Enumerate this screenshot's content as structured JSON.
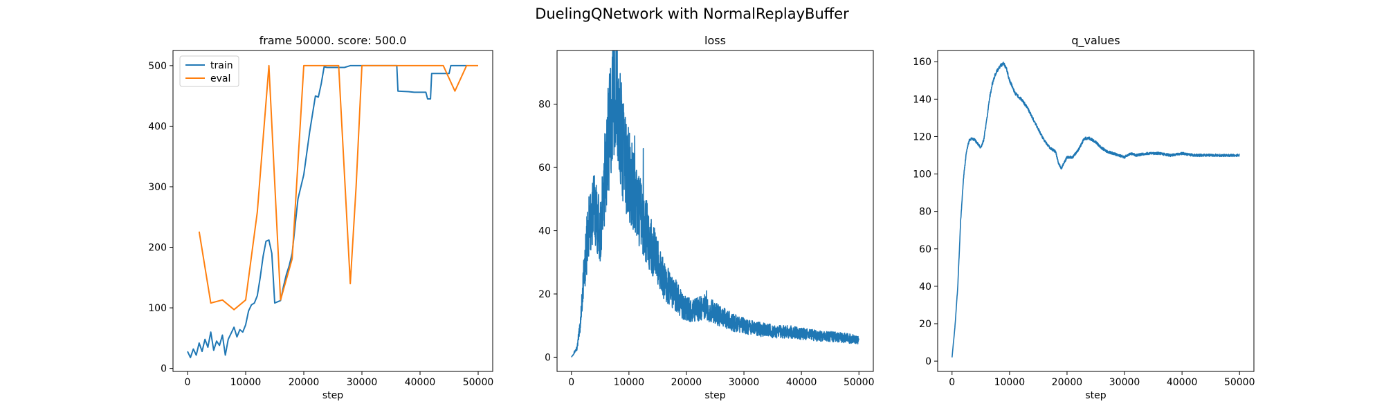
{
  "figure": {
    "title": "DuelingQNetwork with NormalReplayBuffer"
  },
  "colors": {
    "train": "#1f77b4",
    "eval": "#ff7f0e",
    "axis": "#000000"
  },
  "chart_data": [
    {
      "type": "line",
      "title": "frame 50000. score: 500.0",
      "xlabel": "step",
      "ylabel": "",
      "xlim": [
        -2500,
        52500
      ],
      "ylim": [
        -5,
        525
      ],
      "xticks": [
        0,
        10000,
        20000,
        30000,
        40000,
        50000
      ],
      "yticks": [
        0,
        100,
        200,
        300,
        400,
        500
      ],
      "legend": "top-left",
      "grid": false,
      "series": [
        {
          "name": "train",
          "color": "#1f77b4",
          "x": [
            0,
            500,
            1000,
            1500,
            2000,
            2500,
            3000,
            3500,
            4000,
            4500,
            5000,
            5500,
            6000,
            6500,
            7000,
            7500,
            8000,
            8500,
            9000,
            9500,
            10000,
            10500,
            11000,
            11500,
            12000,
            12500,
            13000,
            13500,
            14000,
            14500,
            15000,
            15500,
            16000,
            16500,
            17000,
            17500,
            18000,
            19000,
            20000,
            21000,
            22000,
            22500,
            23000,
            23500,
            24000,
            25000,
            26000,
            27000,
            28000,
            29000,
            30000,
            32000,
            34000,
            36000,
            36200,
            38000,
            39000,
            41000,
            41300,
            41800,
            42000,
            44000,
            45000,
            45300,
            46000,
            48000
          ],
          "y": [
            28,
            18,
            32,
            22,
            42,
            28,
            48,
            35,
            60,
            30,
            45,
            38,
            55,
            22,
            48,
            58,
            68,
            52,
            64,
            60,
            72,
            95,
            105,
            108,
            120,
            150,
            185,
            210,
            212,
            190,
            108,
            110,
            112,
            135,
            155,
            170,
            190,
            280,
            320,
            390,
            450,
            448,
            470,
            498,
            497,
            497,
            497,
            497,
            500,
            500,
            500,
            500,
            500,
            500,
            458,
            457,
            456,
            456,
            445,
            445,
            487,
            487,
            487,
            500,
            500,
            500
          ]
        },
        {
          "name": "eval",
          "color": "#ff7f0e",
          "x": [
            2000,
            4000,
            6000,
            8000,
            10000,
            12000,
            14000,
            16000,
            18000,
            20000,
            22000,
            24000,
            26000,
            28000,
            29000,
            30000,
            32000,
            34000,
            36000,
            38000,
            40000,
            42000,
            44000,
            46000,
            48000,
            50000
          ],
          "y": [
            226,
            108,
            113,
            97,
            113,
            258,
            500,
            113,
            181,
            500,
            500,
            500,
            500,
            140,
            300,
            500,
            500,
            500,
            500,
            500,
            500,
            500,
            500,
            458,
            500,
            500
          ]
        }
      ]
    },
    {
      "type": "line",
      "title": "loss",
      "xlabel": "step",
      "ylabel": "",
      "xlim": [
        -2500,
        52500
      ],
      "ylim": [
        -4.5,
        97
      ],
      "xticks": [
        0,
        10000,
        20000,
        30000,
        40000,
        50000
      ],
      "yticks": [
        0,
        20,
        40,
        60,
        80
      ],
      "grid": false,
      "series": [
        {
          "color": "#1f77b4",
          "x": [
            0,
            1000,
            1500,
            2000,
            2500,
            3000,
            3500,
            4000,
            4500,
            5000,
            5500,
            6000,
            6500,
            7000,
            7500,
            8000,
            8500,
            9000,
            9500,
            10000,
            11000,
            12000,
            13000,
            14000,
            15000,
            16000,
            17000,
            18000,
            19000,
            20000,
            22000,
            23000,
            24000,
            25000,
            26000,
            28000,
            30000,
            32000,
            34000,
            36000,
            38000,
            40000,
            42000,
            44000,
            46000,
            48000,
            50000
          ],
          "y": [
            0,
            3,
            10,
            22,
            33,
            40,
            45,
            48,
            44,
            40,
            48,
            62,
            70,
            80,
            85,
            78,
            72,
            65,
            60,
            58,
            52,
            45,
            40,
            35,
            30,
            25,
            22,
            20,
            17,
            15,
            15,
            16,
            15,
            14,
            13,
            11,
            10,
            9,
            8.5,
            8,
            8,
            7.5,
            7,
            6.5,
            6.5,
            6,
            5.5
          ],
          "noise": 0.16,
          "peaks": [
            [
              7500,
              94
            ],
            [
              8200,
              88
            ],
            [
              11000,
              70
            ],
            [
              12500,
              66
            ],
            [
              23500,
              21
            ]
          ]
        }
      ]
    },
    {
      "type": "line",
      "title": "q_values",
      "xlabel": "step",
      "ylabel": "",
      "xlim": [
        -2500,
        52500
      ],
      "ylim": [
        -5.5,
        166
      ],
      "xticks": [
        0,
        10000,
        20000,
        30000,
        40000,
        50000
      ],
      "yticks": [
        0,
        20,
        40,
        60,
        80,
        100,
        120,
        140,
        160
      ],
      "grid": false,
      "series": [
        {
          "color": "#1f77b4",
          "x": [
            0,
            500,
            1000,
            1500,
            2000,
            2500,
            3000,
            3500,
            4000,
            5000,
            5500,
            6000,
            6500,
            7000,
            7500,
            8000,
            8500,
            9000,
            9500,
            10000,
            11000,
            12000,
            13000,
            14000,
            15000,
            16000,
            17000,
            18000,
            18500,
            19000,
            19500,
            20000,
            21000,
            22000,
            23000,
            24000,
            25000,
            26000,
            27000,
            28000,
            29000,
            30000,
            31000,
            32000,
            34000,
            36000,
            38000,
            40000,
            42000,
            44000,
            46000,
            48000,
            50000
          ],
          "y": [
            2,
            18,
            40,
            75,
            98,
            112,
            118,
            119,
            118,
            114,
            118,
            128,
            140,
            148,
            153,
            156,
            158,
            159,
            156,
            150,
            143,
            140,
            136,
            130,
            124,
            118,
            114,
            112,
            106,
            103,
            106,
            109,
            109,
            113,
            119,
            119,
            117,
            114,
            112,
            111,
            110,
            109,
            111,
            110,
            111,
            111,
            110,
            111,
            110,
            110,
            110,
            110,
            110
          ],
          "noise": 0.006
        }
      ]
    }
  ]
}
